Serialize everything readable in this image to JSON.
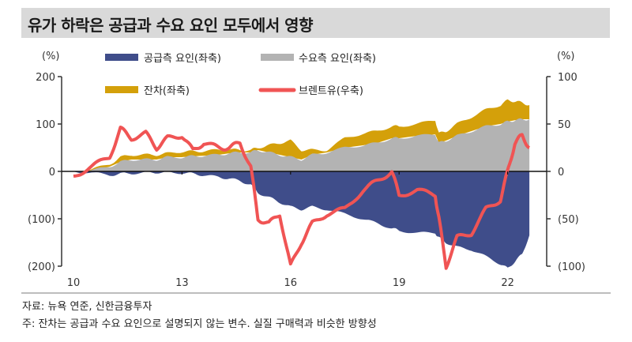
{
  "header": {
    "title": "유가 하락은 공급과 수요 요인 모두에서 영향"
  },
  "footer": {
    "source": "자료: 뉴욕 연준, 신한금융투자",
    "note": "주: 잔차는 공급과 수요 요인으로 설명되지 않는 변수. 실질 구매력과 비슷한 방향성"
  },
  "colors": {
    "supply": "#3f4d8a",
    "demand": "#b3b3b3",
    "residual": "#d4a00a",
    "brent": "#f05454",
    "axis": "#222222",
    "title_bg": "#d9d9d9"
  },
  "chart_data": {
    "type": "area",
    "title": "유가 하락은 공급과 수요 요인 모두에서 영향",
    "left_axis": {
      "unit_label": "(%)",
      "ticks": [
        "200",
        "100",
        "0",
        "(100)",
        "(200)"
      ],
      "tick_values": [
        200,
        100,
        0,
        -100,
        -200
      ],
      "ylim": [
        -200,
        200
      ]
    },
    "right_axis": {
      "unit_label": "(%)",
      "ticks": [
        "100",
        "50",
        "0",
        "(50)",
        "(100)"
      ],
      "tick_values": [
        100,
        50,
        0,
        -50,
        -100
      ],
      "ylim": [
        -100,
        100
      ]
    },
    "x_ticks": [
      "10",
      "13",
      "16",
      "19",
      "22"
    ],
    "x_tick_values": [
      2010,
      2013,
      2016,
      2019,
      2022
    ],
    "xlim": [
      2010,
      2023.3
    ],
    "legend": [
      {
        "label": "공급측 요인(좌축)",
        "key": "supply"
      },
      {
        "label": "수요측 요인(좌축)",
        "key": "demand"
      },
      {
        "label": "잔차(좌축)",
        "key": "residual"
      },
      {
        "label": "브렌트유(우축)",
        "key": "brent"
      }
    ],
    "x": [
      2010.0,
      2010.5,
      2011.0,
      2011.3,
      2011.6,
      2012.0,
      2012.3,
      2012.6,
      2013.0,
      2013.3,
      2013.6,
      2014.0,
      2014.3,
      2014.6,
      2014.9,
      2015.1,
      2015.4,
      2015.7,
      2016.0,
      2016.3,
      2016.6,
      2017.0,
      2017.5,
      2018.0,
      2018.4,
      2018.8,
      2019.0,
      2019.5,
      2020.0,
      2020.1,
      2020.3,
      2020.6,
      2021.0,
      2021.4,
      2021.8,
      2022.0,
      2022.2,
      2022.4,
      2022.6
    ],
    "series": [
      {
        "name": "공급측 요인(좌축)",
        "axis": "left",
        "values": [
          0,
          -3,
          -8,
          -5,
          -4,
          -3,
          -2,
          -3,
          -3,
          -5,
          -8,
          -12,
          -15,
          -20,
          -28,
          -45,
          -55,
          -65,
          -75,
          -80,
          -75,
          -80,
          -90,
          -100,
          -110,
          -120,
          -125,
          -130,
          -130,
          -140,
          -150,
          -160,
          -165,
          -180,
          -195,
          -205,
          -190,
          -175,
          -135
        ]
      },
      {
        "name": "수요측 요인(좌축)",
        "axis": "left",
        "values": [
          0,
          2,
          10,
          20,
          25,
          25,
          25,
          30,
          30,
          32,
          33,
          35,
          38,
          40,
          40,
          45,
          40,
          35,
          30,
          25,
          35,
          40,
          50,
          55,
          60,
          70,
          70,
          75,
          78,
          60,
          65,
          75,
          85,
          95,
          100,
          105,
          108,
          110,
          110
        ]
      },
      {
        "name": "잔차(좌축)",
        "axis": "left",
        "values": [
          0,
          2,
          5,
          10,
          10,
          10,
          10,
          8,
          12,
          10,
          10,
          10,
          8,
          5,
          5,
          5,
          15,
          25,
          35,
          20,
          10,
          5,
          20,
          25,
          25,
          25,
          25,
          25,
          30,
          20,
          20,
          25,
          30,
          35,
          40,
          45,
          40,
          35,
          30
        ]
      },
      {
        "name": "브렌트유(우축)",
        "axis": "right",
        "values": [
          -5,
          5,
          15,
          45,
          35,
          40,
          25,
          35,
          38,
          22,
          30,
          25,
          25,
          30,
          5,
          -50,
          -55,
          -45,
          -100,
          -75,
          -55,
          -45,
          -40,
          -20,
          -10,
          0,
          -25,
          -20,
          -25,
          -50,
          -100,
          -70,
          -65,
          -40,
          -30,
          0,
          30,
          38,
          25
        ]
      }
    ]
  }
}
